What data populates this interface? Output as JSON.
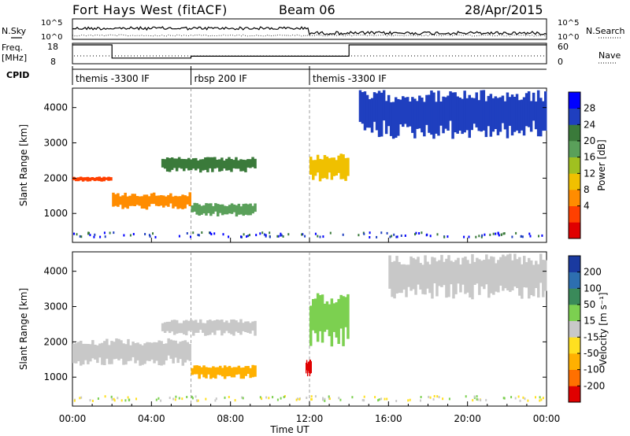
{
  "header": {
    "station": "Fort Hays West (fitACF)",
    "beam": "Beam 06",
    "date": "28/Apr/2015"
  },
  "top_panels": {
    "nsky_label": "N.Sky",
    "nsearch_label": "N.Search",
    "noise_ticks_left": [
      "10^5",
      "10^0"
    ],
    "noise_ticks_right": [
      "10^5",
      "10^0"
    ],
    "freq_label": "Freq.",
    "freq_unit": "[MHz]",
    "freq_ticks": [
      "18",
      "8"
    ],
    "nave_label": "Nave",
    "nave_ticks": [
      "60",
      "0"
    ],
    "cpid_label": "CPID",
    "cpid_segments": [
      {
        "label": "themis -3300 IF",
        "start_h": 0,
        "end_h": 6
      },
      {
        "label": "rbsp 200 IF",
        "start_h": 6,
        "end_h": 12
      },
      {
        "label": "themis -3300 IF",
        "start_h": 12,
        "end_h": 24
      }
    ],
    "freq_profile": [
      [
        0,
        18
      ],
      [
        2,
        18
      ],
      [
        2,
        11
      ],
      [
        6,
        11
      ],
      [
        6,
        12
      ],
      [
        14,
        12
      ],
      [
        14,
        18
      ],
      [
        24,
        18
      ]
    ]
  },
  "chart_data": [
    {
      "type": "heatmap",
      "name": "power",
      "ylabel": "Slant Range [km]",
      "yticks": [
        1000,
        2000,
        3000,
        4000
      ],
      "ylim": [
        180,
        4550
      ],
      "xlim": [
        0,
        24
      ],
      "colorbar_label": "Power [dB]",
      "colorbar_ticks": [
        "28",
        "24",
        "20",
        "16",
        "12",
        "8",
        "4"
      ],
      "colorbar_colors": [
        "#0000ff",
        "#1f3fbf",
        "#3a7a3a",
        "#5aa05a",
        "#a0c020",
        "#f0c000",
        "#ff8c00",
        "#ff4000",
        "#e00000"
      ],
      "features": [
        {
          "h0": 0.0,
          "h1": 2.0,
          "r0": 1900,
          "r1": 2050,
          "level": 7
        },
        {
          "h0": 2.0,
          "h1": 6.0,
          "r0": 1100,
          "r1": 1600,
          "level": 6
        },
        {
          "h0": 4.5,
          "h1": 9.3,
          "r0": 2150,
          "r1": 2600,
          "level": 2
        },
        {
          "h0": 6.0,
          "h1": 9.3,
          "r0": 900,
          "r1": 1300,
          "level": 3
        },
        {
          "h0": 12.0,
          "h1": 14.0,
          "r0": 1900,
          "r1": 2700,
          "level": 5
        },
        {
          "h0": 14.5,
          "h1": 24.0,
          "r0": 3100,
          "r1": 4500,
          "level": 1
        }
      ]
    },
    {
      "type": "heatmap",
      "name": "velocity",
      "ylabel": "Slant Range [km]",
      "yticks": [
        1000,
        2000,
        3000,
        4000
      ],
      "ylim": [
        180,
        4550
      ],
      "xlim": [
        0,
        24
      ],
      "xlabel": "Time UT",
      "xticks": [
        "00:00",
        "04:00",
        "08:00",
        "12:00",
        "16:00",
        "20:00",
        "00:00"
      ],
      "colorbar_label": "Velocity [m s⁻¹]",
      "colorbar_ticks": [
        "200",
        "100",
        "50",
        "15",
        "-15",
        "-50",
        "-100",
        "-200"
      ],
      "colorbar_colors": [
        "#1a3aa0",
        "#2d6fb0",
        "#3a8a5a",
        "#7cd050",
        "#c8c8c8",
        "#ffe020",
        "#ffb000",
        "#ff7000",
        "#e00000"
      ],
      "features": [
        {
          "h0": 0.0,
          "h1": 6.0,
          "r0": 1300,
          "r1": 2100,
          "vel": 0
        },
        {
          "h0": 4.5,
          "h1": 9.3,
          "r0": 2150,
          "r1": 2650,
          "vel": 0
        },
        {
          "h0": 6.0,
          "h1": 9.3,
          "r0": 950,
          "r1": 1350,
          "vel": -80
        },
        {
          "h0": 12.0,
          "h1": 14.0,
          "r0": 1850,
          "r1": 3400,
          "vel": 40
        },
        {
          "h0": 11.8,
          "h1": 12.1,
          "r0": 1000,
          "r1": 1500,
          "vel": -200
        },
        {
          "h0": 16.0,
          "h1": 24.0,
          "r0": 3200,
          "r1": 4500,
          "vel": 0
        }
      ]
    }
  ]
}
